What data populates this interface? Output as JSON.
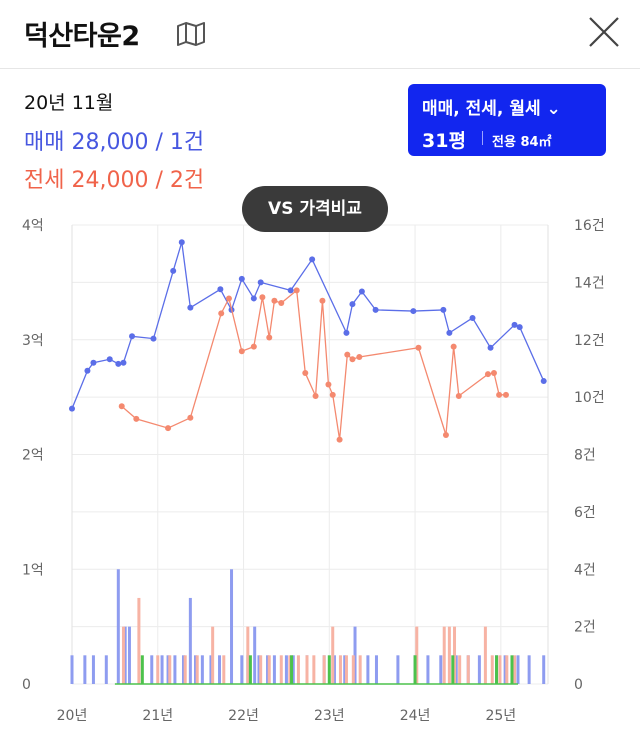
{
  "header": {
    "title": "덕산타운2",
    "map_icon": "map-icon",
    "close_icon": "close-icon"
  },
  "summary": {
    "date": "20년 11월",
    "sale": "매매 28,000 / 1건",
    "jeonse": "전세 24,000 / 2건"
  },
  "filter": {
    "deal_types": "매매, 전세, 월세",
    "size": "31평",
    "area": "전용 84㎡",
    "chevron_icon": "chevron-down-icon"
  },
  "compare_button": "VS 가격비교",
  "colors": {
    "sale": "#5b6ee8",
    "jeonse": "#f4896f",
    "sale_bar": "#8e9cf0",
    "jeonse_bar": "#f7b3a4",
    "monthly": "#4cc24c",
    "accent": "#1226ef"
  },
  "chart_data": {
    "type": "line",
    "x_tick_labels": [
      "20년",
      "21년",
      "22년",
      "23년",
      "24년",
      "25년"
    ],
    "xlim": [
      2020.0,
      2025.55
    ],
    "y_left": {
      "ticks": [
        0,
        1,
        2,
        3,
        4
      ],
      "tick_labels": [
        "0",
        "1억",
        "2억",
        "3억",
        "4억"
      ],
      "unit": "억",
      "ylim": [
        0,
        4
      ]
    },
    "y_right": {
      "ticks": [
        0,
        2,
        4,
        6,
        8,
        10,
        12,
        14,
        16
      ],
      "tick_labels": [
        "0",
        "2건",
        "4건",
        "6건",
        "8건",
        "10건",
        "12건",
        "14건",
        "16건"
      ],
      "unit": "건",
      "ylim": [
        0,
        16
      ]
    },
    "grid": true,
    "series": [
      {
        "type": "line",
        "x": [
          2020.0,
          2020.18,
          2020.25,
          2020.44,
          2020.54,
          2020.6,
          2020.7,
          2020.95,
          2021.18,
          2021.28,
          2021.38,
          2021.73,
          2021.86,
          2021.98,
          2022.12,
          2022.2,
          2022.55,
          2022.8,
          2023.2,
          2023.27,
          2023.38,
          2023.54,
          2023.98,
          2024.33,
          2024.4,
          2024.67,
          2024.88,
          2025.16,
          2025.22,
          2025.5
        ],
        "values": [
          2.4,
          2.73,
          2.8,
          2.83,
          2.79,
          2.8,
          3.03,
          3.01,
          3.6,
          3.85,
          3.28,
          3.44,
          3.26,
          3.53,
          3.36,
          3.5,
          3.43,
          3.7,
          3.06,
          3.31,
          3.42,
          3.26,
          3.25,
          3.26,
          3.06,
          3.19,
          2.93,
          3.13,
          3.11,
          2.64
        ]
      },
      {
        "type": "line",
        "x": [
          2020.58,
          2020.75,
          2021.12,
          2021.38,
          2021.74,
          2021.83,
          2021.98,
          2022.12,
          2022.22,
          2022.3,
          2022.36,
          2022.44,
          2022.62,
          2022.72,
          2022.84,
          2022.92,
          2022.99,
          2023.04,
          2023.12,
          2023.21,
          2023.27,
          2023.35,
          2024.04,
          2024.36,
          2024.45,
          2024.51,
          2024.85,
          2024.92,
          2024.98,
          2025.06
        ],
        "values": [
          2.42,
          2.31,
          2.23,
          2.32,
          3.23,
          3.36,
          2.9,
          2.94,
          3.37,
          3.02,
          3.34,
          3.32,
          3.43,
          2.71,
          2.51,
          3.34,
          2.61,
          2.52,
          2.13,
          2.87,
          2.83,
          2.85,
          2.93,
          2.17,
          2.94,
          2.51,
          2.7,
          2.71,
          2.52,
          2.52
        ]
      },
      {
        "type": "bar",
        "x": [
          2020.0,
          2020.15,
          2020.25,
          2020.4,
          2020.54,
          2020.62,
          2020.67,
          2020.93,
          2021.05,
          2021.12,
          2021.2,
          2021.3,
          2021.38,
          2021.44,
          2021.52,
          2021.62,
          2021.72,
          2021.86,
          2021.98,
          2022.05,
          2022.13,
          2022.18,
          2022.28,
          2022.36,
          2022.5,
          2022.58,
          2022.74,
          2022.94,
          2023.06,
          2023.18,
          2023.3,
          2023.45,
          2023.55,
          2023.8,
          2024.0,
          2024.15,
          2024.3,
          2024.48,
          2024.62,
          2024.75,
          2024.95,
          2025.05,
          2025.2,
          2025.33,
          2025.5
        ],
        "values": [
          1,
          1,
          1,
          1,
          4,
          2,
          2,
          1,
          1,
          1,
          1,
          1,
          3,
          1,
          1,
          1,
          1,
          4,
          1,
          1,
          2,
          1,
          1,
          1,
          1,
          1,
          1,
          1,
          1,
          1,
          2,
          1,
          1,
          1,
          1,
          1,
          1,
          1,
          1,
          1,
          1,
          1,
          1,
          1,
          1
        ]
      },
      {
        "type": "bar",
        "x": [
          2020.6,
          2020.78,
          2021.0,
          2021.14,
          2021.32,
          2021.46,
          2021.64,
          2021.77,
          2022.05,
          2022.2,
          2022.3,
          2022.44,
          2022.54,
          2022.64,
          2022.74,
          2022.82,
          2022.94,
          2023.04,
          2023.13,
          2023.2,
          2023.28,
          2023.36,
          2024.02,
          2024.34,
          2024.4,
          2024.46,
          2024.52,
          2024.62,
          2024.82,
          2024.9,
          2024.99,
          2025.07,
          2025.16
        ],
        "values": [
          2,
          3,
          1,
          1,
          1,
          1,
          2,
          1,
          2,
          1,
          1,
          1,
          1,
          1,
          1,
          1,
          1,
          2,
          1,
          1,
          1,
          1,
          2,
          2,
          2,
          2,
          1,
          1,
          2,
          1,
          1,
          1,
          1
        ]
      },
      {
        "type": "bar",
        "x": [
          2020.82,
          2022.08,
          2022.56,
          2023.0,
          2024.0,
          2024.44,
          2024.95,
          2025.13
        ],
        "values": [
          1,
          1,
          1,
          1,
          1,
          1,
          1,
          1
        ]
      }
    ]
  }
}
